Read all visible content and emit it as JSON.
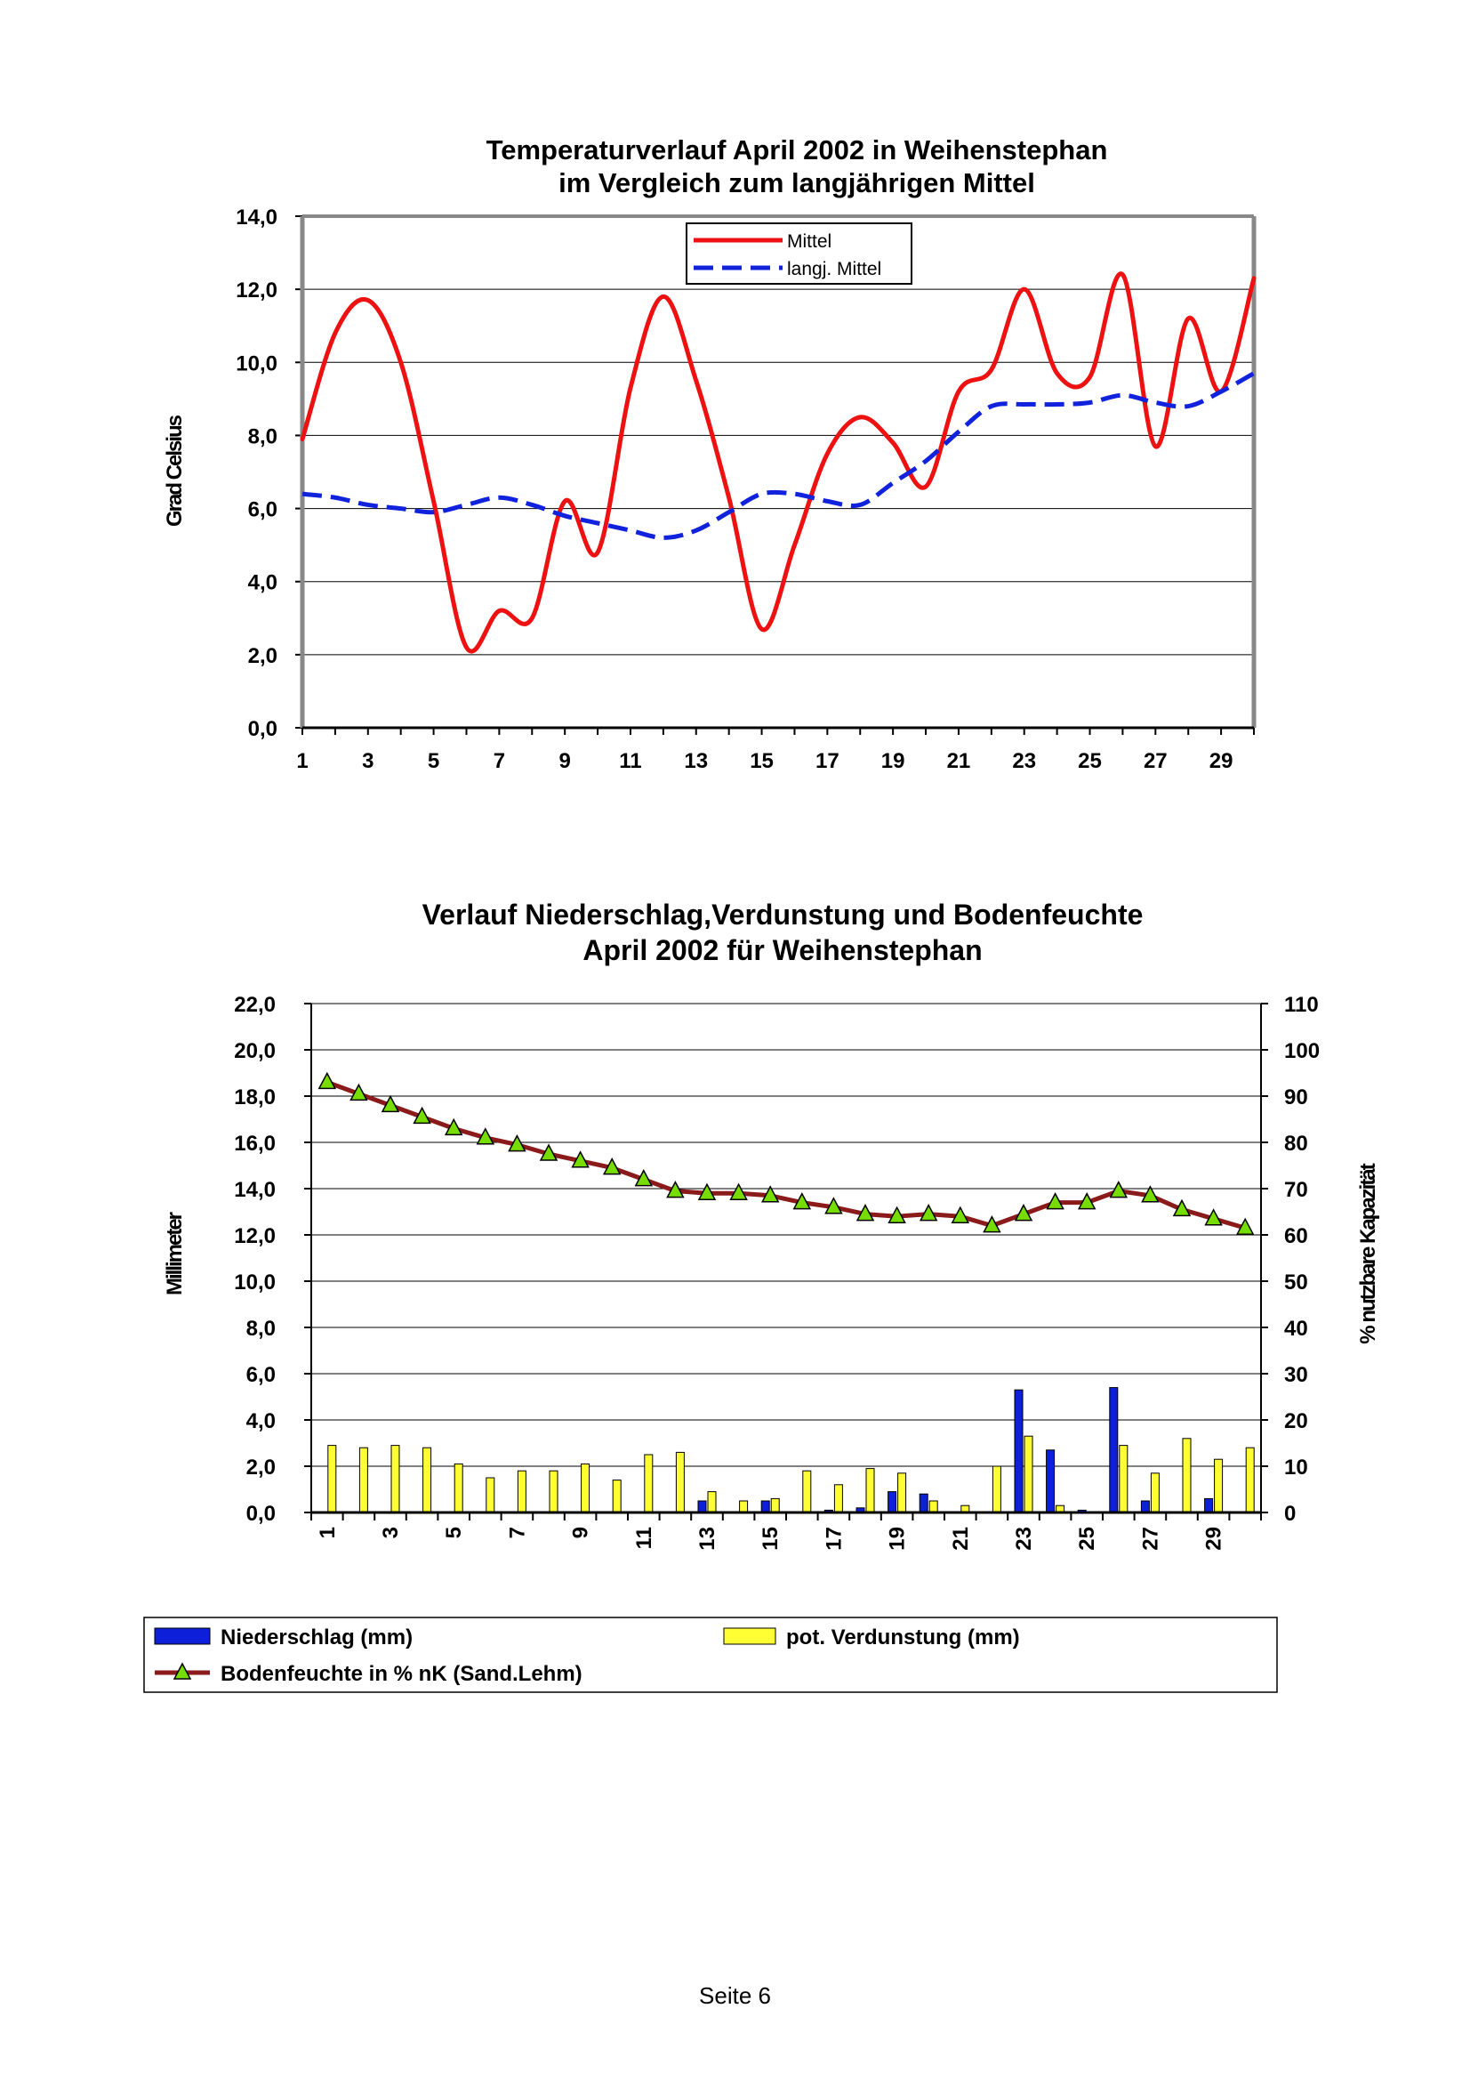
{
  "chart_data": [
    {
      "type": "line",
      "title": [
        "Temperaturverlauf April 2002 in Weihenstephan",
        "im Vergleich zum langjährigen Mittel"
      ],
      "ylabel": "Grad Celsius",
      "xlabel": "",
      "ylim": [
        0,
        14
      ],
      "y_ticks": [
        "0,0",
        "2,0",
        "4,0",
        "6,0",
        "8,0",
        "10,0",
        "12,0",
        "14,0"
      ],
      "x_ticks": [
        "1",
        "3",
        "5",
        "7",
        "9",
        "11",
        "13",
        "15",
        "17",
        "19",
        "21",
        "23",
        "25",
        "27",
        "29"
      ],
      "x": [
        1,
        2,
        3,
        4,
        5,
        6,
        7,
        8,
        9,
        10,
        11,
        12,
        13,
        14,
        15,
        16,
        17,
        18,
        19,
        20,
        21,
        22,
        23,
        24,
        25,
        26,
        27,
        28,
        29,
        30
      ],
      "grid": true,
      "legend": "top-center",
      "series": [
        {
          "name": "Mittel",
          "color": "#ee1111",
          "style": "solid",
          "values": [
            7.9,
            10.8,
            11.7,
            10.0,
            6.2,
            2.2,
            3.2,
            3.0,
            6.2,
            4.8,
            9.3,
            11.8,
            9.5,
            6.3,
            2.7,
            5.0,
            7.5,
            8.5,
            7.8,
            6.6,
            9.2,
            9.8,
            12.0,
            9.7,
            9.6,
            12.4,
            7.7,
            11.2,
            9.2,
            12.3
          ]
        },
        {
          "name": "langj. Mittel",
          "color": "#1122dd",
          "style": "dashed",
          "values": [
            6.4,
            6.3,
            6.1,
            6.0,
            5.9,
            6.1,
            6.3,
            6.1,
            5.8,
            5.6,
            5.4,
            5.2,
            5.4,
            5.9,
            6.4,
            6.4,
            6.2,
            6.1,
            6.7,
            7.3,
            8.1,
            8.8,
            8.85,
            8.85,
            8.9,
            9.1,
            8.9,
            8.8,
            9.2,
            9.7
          ]
        }
      ]
    },
    {
      "type": "bar",
      "title": [
        "Verlauf Niederschlag,Verdunstung und Bodenfeuchte",
        "April 2002 für Weihenstephan"
      ],
      "ylabel": "Millimeter",
      "y2label": "% nutzbare Kapazität",
      "ylim": [
        0,
        22
      ],
      "y2lim": [
        0,
        110
      ],
      "y_ticks": [
        "0,0",
        "2,0",
        "4,0",
        "6,0",
        "8,0",
        "10,0",
        "12,0",
        "14,0",
        "16,0",
        "18,0",
        "20,0",
        "22,0"
      ],
      "y2_ticks": [
        "0",
        "10",
        "20",
        "30",
        "40",
        "50",
        "60",
        "70",
        "80",
        "90",
        "100",
        "110"
      ],
      "x_ticks": [
        "1",
        "3",
        "5",
        "7",
        "9",
        "11",
        "13",
        "15",
        "17",
        "19",
        "21",
        "23",
        "25",
        "27",
        "29"
      ],
      "x": [
        1,
        2,
        3,
        4,
        5,
        6,
        7,
        8,
        9,
        10,
        11,
        12,
        13,
        14,
        15,
        16,
        17,
        18,
        19,
        20,
        21,
        22,
        23,
        24,
        25,
        26,
        27,
        28,
        29,
        30
      ],
      "grid": true,
      "legend": "bottom",
      "series": [
        {
          "name": "Niederschlag (mm)",
          "type": "bar",
          "axis": "left",
          "color": "#0d1fd8",
          "values": [
            0,
            0,
            0,
            0,
            0,
            0,
            0,
            0,
            0,
            0,
            0,
            0,
            0.5,
            0,
            0.5,
            0,
            0.1,
            0.2,
            0.9,
            0.8,
            0,
            0,
            5.3,
            2.7,
            0.1,
            5.4,
            0.5,
            0,
            0.6,
            0
          ]
        },
        {
          "name": "pot. Verdunstung (mm)",
          "type": "bar",
          "axis": "left",
          "color": "#ffff33",
          "values": [
            2.9,
            2.8,
            2.9,
            2.8,
            2.1,
            1.5,
            1.8,
            1.8,
            2.1,
            1.4,
            2.5,
            2.6,
            0.9,
            0.5,
            0.6,
            1.8,
            1.2,
            1.9,
            1.7,
            0.5,
            0.3,
            2.0,
            3.3,
            0.3,
            0,
            2.9,
            1.7,
            3.2,
            2.3,
            2.8
          ]
        },
        {
          "name": "Bodenfeuchte in % nK (Sand.Lehm)",
          "type": "line",
          "axis": "right",
          "color": "#8b1a1a",
          "marker_color": "#77dd00",
          "values": [
            93,
            90.5,
            88,
            85.5,
            83,
            81,
            79.5,
            77.5,
            76,
            74.5,
            72,
            69.5,
            69,
            69,
            68.5,
            67,
            66,
            64.5,
            64,
            64.5,
            64,
            62,
            64.5,
            67,
            67,
            69.5,
            68.5,
            65.5,
            63.5,
            61.5
          ]
        }
      ]
    }
  ],
  "footer": {
    "page_label": "Seite 6"
  }
}
